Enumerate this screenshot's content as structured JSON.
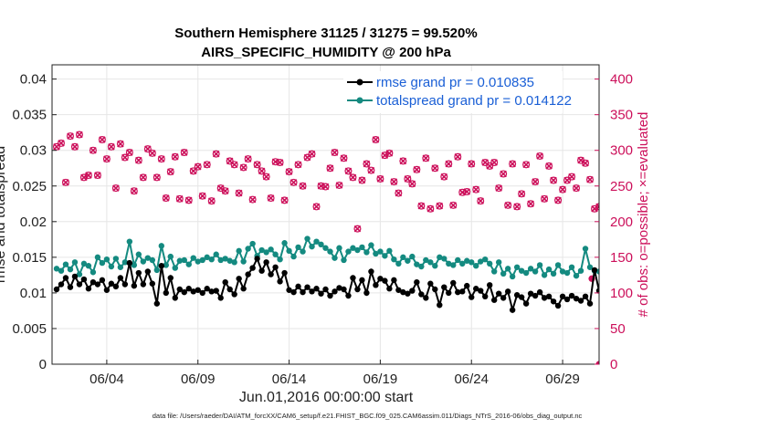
{
  "chart_data": {
    "type": "line",
    "title": "Southern Hemisphere 31125 / 31275 = 99.520%",
    "subtitle": "AIRS_SPECIFIC_HUMIDITY @ 200 hPa",
    "xlabel": "Jun.01,2016 00:00:00 start",
    "ylabel_left": "rmse and totalspread",
    "ylabel_right": "# of obs: o=possible; ×=evaluated",
    "x_tick_labels": [
      "06/04",
      "06/09",
      "06/14",
      "06/19",
      "06/24",
      "06/29"
    ],
    "x_tick_days": [
      4,
      9,
      14,
      19,
      24,
      29
    ],
    "xlim": [
      1,
      31
    ],
    "ylim_left": [
      0,
      0.042
    ],
    "y_ticks_left": [
      "0",
      "0.005",
      "0.01",
      "0.015",
      "0.02",
      "0.025",
      "0.03",
      "0.035",
      "0.04"
    ],
    "ylim_right": [
      0,
      420
    ],
    "y_ticks_right": [
      "0",
      "50",
      "100",
      "150",
      "200",
      "250",
      "300",
      "350",
      "400"
    ],
    "n_points": 120,
    "series": [
      {
        "name": "rmse grand pr = 0.010835",
        "color": "#000000",
        "axis": "left",
        "values": [
          0.0105,
          0.0112,
          0.0121,
          0.0108,
          0.0123,
          0.0112,
          0.0119,
          0.0106,
          0.0115,
          0.0112,
          0.0118,
          0.0104,
          0.0113,
          0.0109,
          0.0121,
          0.0112,
          0.0142,
          0.011,
          0.0128,
          0.0112,
          0.013,
          0.0113,
          0.0085,
          0.0138,
          0.01,
          0.0121,
          0.0093,
          0.0105,
          0.0101,
          0.0106,
          0.0102,
          0.0104,
          0.01,
          0.0106,
          0.0102,
          0.0103,
          0.0093,
          0.0115,
          0.0105,
          0.0098,
          0.012,
          0.0106,
          0.0126,
          0.0135,
          0.0148,
          0.0131,
          0.0143,
          0.0126,
          0.0136,
          0.0116,
          0.0128,
          0.0104,
          0.0101,
          0.0109,
          0.0101,
          0.0108,
          0.0102,
          0.0106,
          0.0099,
          0.0105,
          0.0096,
          0.0102,
          0.0107,
          0.0105,
          0.0096,
          0.0121,
          0.0105,
          0.0118,
          0.01,
          0.013,
          0.0111,
          0.012,
          0.0117,
          0.0106,
          0.0118,
          0.0104,
          0.0101,
          0.0099,
          0.0103,
          0.0115,
          0.0098,
          0.0093,
          0.0113,
          0.0105,
          0.0083,
          0.0108,
          0.01,
          0.0114,
          0.0101,
          0.0102,
          0.011,
          0.0094,
          0.0106,
          0.0103,
          0.0095,
          0.0111,
          0.009,
          0.0099,
          0.0093,
          0.0102,
          0.0076,
          0.0097,
          0.0094,
          0.0085,
          0.0099,
          0.0096,
          0.0101,
          0.0093,
          0.0095,
          0.0088,
          0.0082,
          0.0095,
          0.0091,
          0.0096,
          0.0092,
          0.0089,
          0.0095,
          0.0085,
          0.0132,
          0.0103
        ],
        "marker": "filled-circle"
      },
      {
        "name": "totalspread grand pr = 0.014122",
        "color": "#148a80",
        "axis": "left",
        "values": [
          0.0134,
          0.0131,
          0.014,
          0.0133,
          0.0143,
          0.0126,
          0.0141,
          0.0138,
          0.0129,
          0.015,
          0.0142,
          0.0147,
          0.0137,
          0.0148,
          0.0136,
          0.0143,
          0.0172,
          0.0139,
          0.0154,
          0.0144,
          0.0149,
          0.0146,
          0.0132,
          0.0166,
          0.0139,
          0.0151,
          0.0135,
          0.0145,
          0.0146,
          0.014,
          0.0149,
          0.0144,
          0.0146,
          0.015,
          0.0147,
          0.0154,
          0.0146,
          0.0148,
          0.0145,
          0.0143,
          0.0159,
          0.0144,
          0.0162,
          0.0169,
          0.0152,
          0.016,
          0.0157,
          0.0161,
          0.0154,
          0.0147,
          0.017,
          0.0159,
          0.0151,
          0.0164,
          0.0158,
          0.0176,
          0.0165,
          0.0172,
          0.0168,
          0.0163,
          0.0158,
          0.0149,
          0.0163,
          0.0146,
          0.0158,
          0.0163,
          0.016,
          0.0164,
          0.0157,
          0.0167,
          0.0155,
          0.0158,
          0.0152,
          0.0159,
          0.0147,
          0.0141,
          0.015,
          0.0145,
          0.0151,
          0.014,
          0.0137,
          0.0146,
          0.0143,
          0.0138,
          0.015,
          0.0148,
          0.0141,
          0.0139,
          0.0146,
          0.0141,
          0.0145,
          0.0143,
          0.0138,
          0.0144,
          0.0147,
          0.0141,
          0.013,
          0.0143,
          0.0127,
          0.0134,
          0.0123,
          0.0136,
          0.0131,
          0.0128,
          0.0134,
          0.013,
          0.0139,
          0.0125,
          0.0133,
          0.0127,
          0.0139,
          0.013,
          0.0128,
          0.0136,
          0.0124,
          0.0131,
          0.0162,
          0.0136,
          0.0131,
          0.013
        ],
        "marker": "filled-circle"
      },
      {
        "name": "# of obs evaluated",
        "color": "#cc0f5a",
        "axis": "right",
        "values": [
          305,
          310,
          255,
          320,
          305,
          322,
          262,
          265,
          300,
          265,
          315,
          288,
          305,
          247,
          309,
          290,
          297,
          243,
          286,
          262,
          302,
          296,
          262,
          288,
          233,
          270,
          291,
          232,
          297,
          230,
          271,
          277,
          236,
          280,
          229,
          295,
          247,
          243,
          285,
          280,
          240,
          276,
          288,
          231,
          280,
          271,
          263,
          233,
          284,
          283,
          230,
          270,
          255,
          280,
          250,
          290,
          295,
          221,
          250,
          249,
          275,
          297,
          251,
          289,
          271,
          262,
          190,
          258,
          281,
          272,
          315,
          260,
          293,
          296,
          256,
          240,
          285,
          260,
          253,
          273,
          222,
          289,
          218,
          275,
          222,
          263,
          281,
          223,
          291,
          241,
          242,
          281,
          245,
          229,
          283,
          278,
          283,
          247,
          267,
          223,
          281,
          221,
          239,
          280,
          225,
          256,
          292,
          232,
          278,
          258,
          230,
          245,
          258,
          263,
          247,
          286,
          282,
          259,
          218,
          221
        ],
        "marker": "x"
      },
      {
        "name": "# of obs possible",
        "color": "#cc0f5a",
        "axis": "right",
        "values": [
          305,
          310,
          255,
          320,
          305,
          322,
          262,
          265,
          300,
          265,
          315,
          288,
          305,
          247,
          309,
          290,
          297,
          243,
          286,
          262,
          302,
          296,
          262,
          288,
          233,
          270,
          291,
          232,
          297,
          230,
          271,
          277,
          236,
          280,
          229,
          295,
          247,
          243,
          285,
          280,
          240,
          276,
          288,
          231,
          280,
          271,
          263,
          233,
          284,
          283,
          230,
          270,
          255,
          280,
          250,
          290,
          295,
          221,
          250,
          249,
          275,
          297,
          251,
          289,
          271,
          262,
          190,
          258,
          281,
          272,
          315,
          260,
          293,
          296,
          256,
          240,
          285,
          260,
          253,
          273,
          222,
          289,
          218,
          275,
          222,
          263,
          281,
          223,
          291,
          241,
          242,
          281,
          245,
          229,
          283,
          278,
          283,
          247,
          267,
          223,
          281,
          221,
          239,
          280,
          225,
          256,
          292,
          232,
          278,
          258,
          230,
          245,
          258,
          263,
          247,
          286,
          282,
          259,
          218,
          221
        ],
        "marker": "open-circle"
      }
    ],
    "extra_marks": [
      {
        "label": "low-count outlier",
        "day": 30.6,
        "value": 120
      },
      {
        "label": "zero-count end",
        "day": 31.0,
        "value": 0
      }
    ],
    "legend_location": "top-right",
    "grid": true
  },
  "footer": {
    "data_file": "data file: /Users/raeder/DAI/ATM_forcXX/CAM6_setup/f.e21.FHIST_BGC.f09_025.CAM6assim.011/Diags_NTrS_2016-06/obs_diag_output.nc"
  }
}
